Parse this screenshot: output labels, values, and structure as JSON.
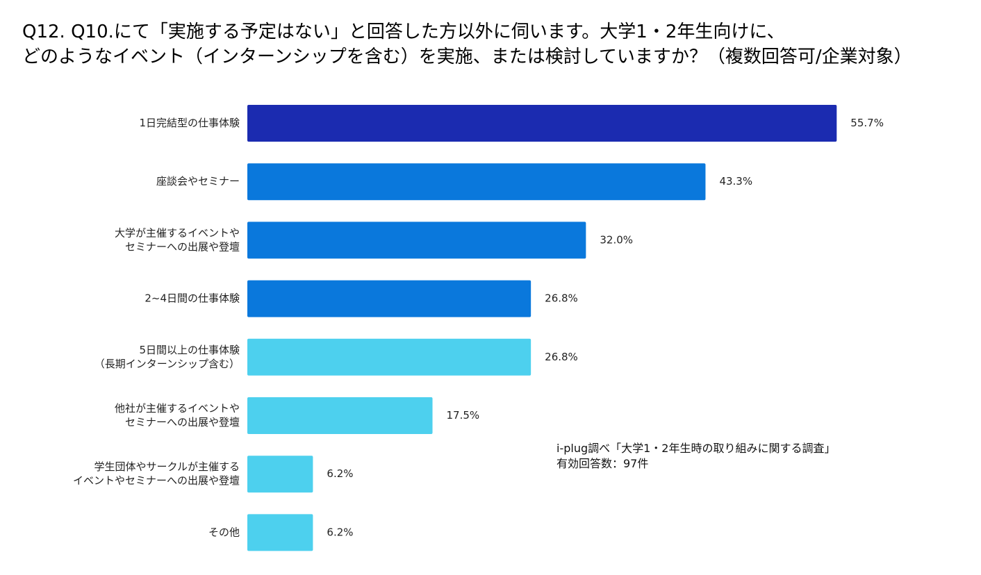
{
  "title": {
    "line1": "Q12. Q10.にて「実施する予定はない」と回答した方以外に伺います。大学1・2年生向けに、",
    "line2": "どのようなイベント（インターンシップを含む）を実施、または検討していますか？（複数回答可/企業対象）"
  },
  "note": {
    "line1": "i-plug調べ「大学1・2年生時の取り組みに関する調査」",
    "line2": "有効回答数：97件"
  },
  "chart_data": {
    "type": "bar",
    "orientation": "horizontal",
    "title": "Q12. Q10.にて「実施する予定はない」と回答した方以外に伺います。大学1・2年生向けに、どのようなイベント（インターンシップを含む）を実施、または検討していますか？（複数回答可/企業対象）",
    "unit": "%",
    "grid": false,
    "categories": [
      [
        "1日完結型の仕事体験"
      ],
      [
        "座談会やセミナー"
      ],
      [
        "大学が主催するイベントや",
        "セミナーへの出展や登壇"
      ],
      [
        "2~4日間の仕事体験"
      ],
      [
        "5日間以上の仕事体験",
        "（長期インターンシップ含む）"
      ],
      [
        "他社が主催するイベントや",
        "セミナーへの出展や登壇"
      ],
      [
        "学生団体やサークルが主催する",
        "イベントやセミナーへの出展や登壇"
      ],
      [
        "その他"
      ]
    ],
    "values": [
      55.7,
      43.3,
      32.0,
      26.8,
      26.8,
      17.5,
      6.2,
      6.2
    ],
    "value_labels": [
      "55.7%",
      "43.3%",
      "32.0%",
      "26.8%",
      "26.8%",
      "17.5%",
      "6.2%",
      "6.2%"
    ],
    "bar_colors": [
      "#1b2bb0",
      "#0a78dc",
      "#0a78dc",
      "#0a78dc",
      "#4dd0ee",
      "#4dd0ee",
      "#4dd0ee",
      "#4dd0ee"
    ]
  }
}
